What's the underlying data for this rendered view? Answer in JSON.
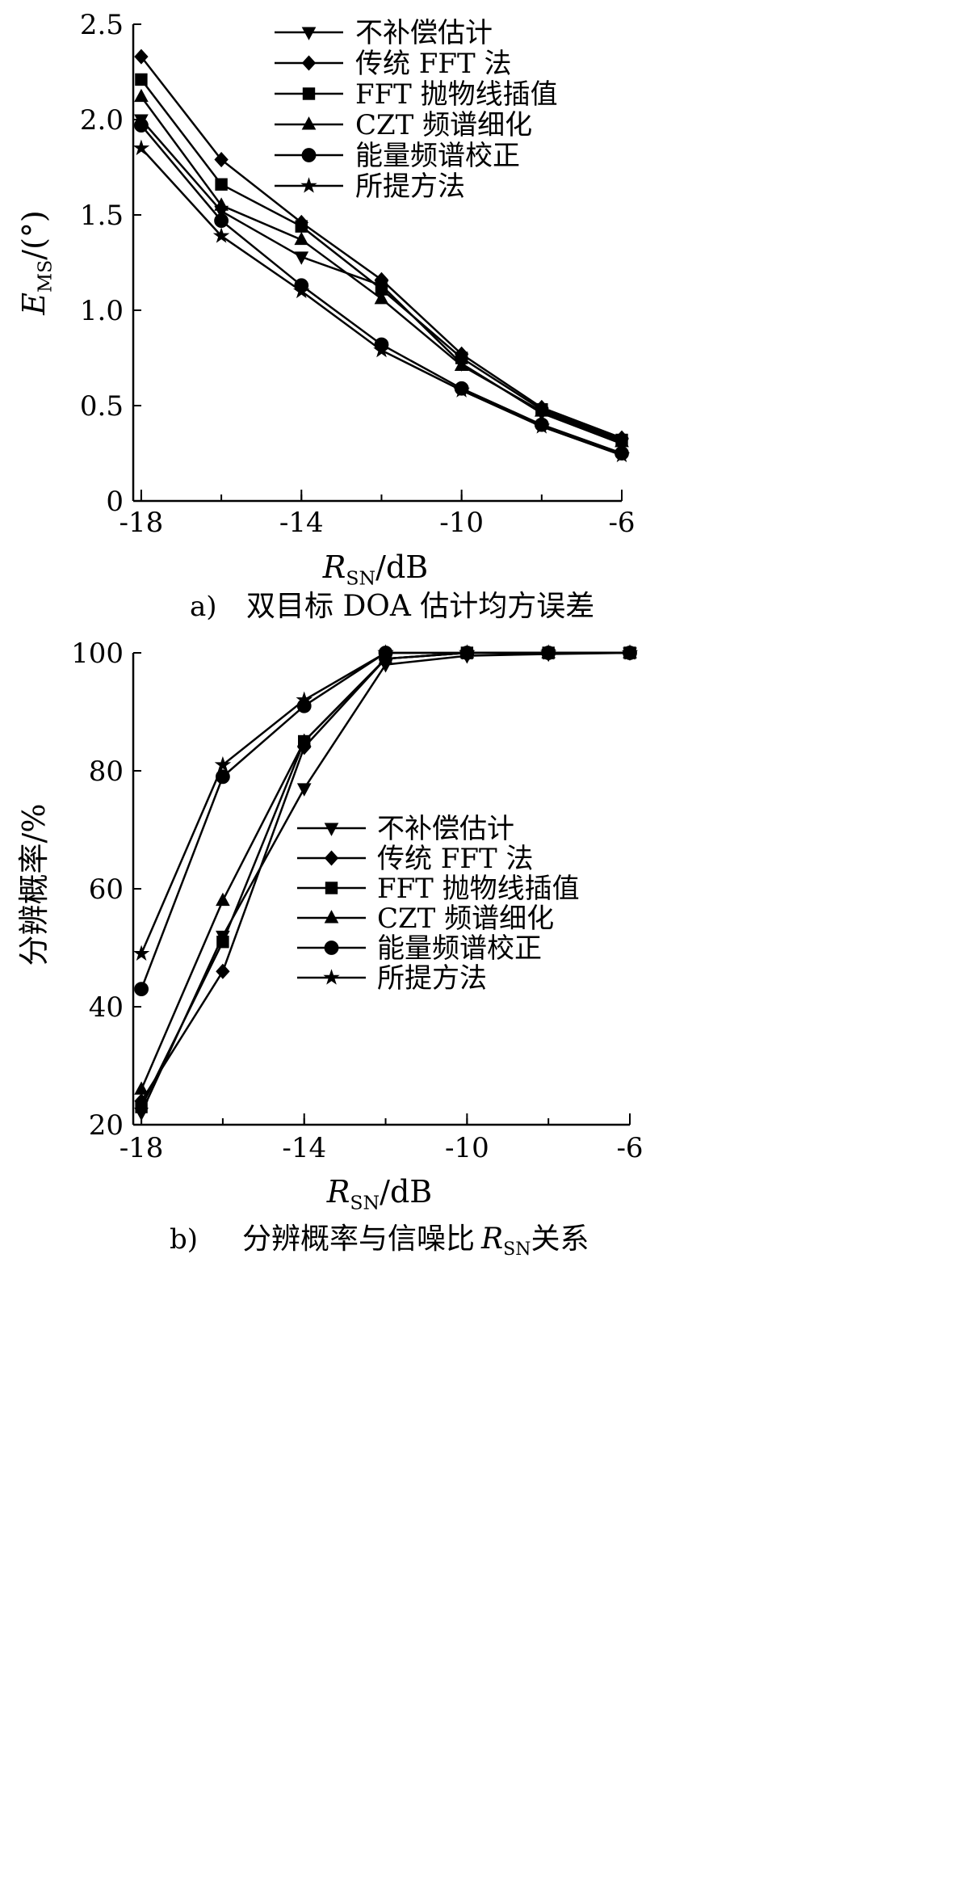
{
  "chart_data": [
    {
      "type": "line",
      "panel_label": "a)",
      "caption_text": "双目标 DOA 估计均方误差",
      "x": [
        -18,
        -16,
        -14,
        -12,
        -10,
        -8,
        -6
      ],
      "xlim": [
        -18.2,
        -6
      ],
      "xticks": [
        -18,
        -14,
        -10,
        -6
      ],
      "xtick_labels": [
        "-18",
        "-14",
        "-10",
        "-6"
      ],
      "xlabel": {
        "main": "R",
        "sub": "SN",
        "rest": "/dB"
      },
      "ylim": [
        0,
        2.5
      ],
      "yticks": [
        0,
        0.5,
        1.0,
        1.5,
        2.0,
        2.5
      ],
      "ytick_labels": [
        "0",
        "0.5",
        "1.0",
        "1.5",
        "2.0",
        "2.5"
      ],
      "ylabel": {
        "main": "E",
        "sub": "MS",
        "rest": "/(°)"
      },
      "grid": false,
      "legend_position": "top-right",
      "series": [
        {
          "name": "不补偿估计",
          "marker": "triangle-down",
          "values": [
            2.0,
            1.52,
            1.28,
            1.13,
            0.72,
            0.46,
            0.3
          ]
        },
        {
          "name": "传统 FFT 法",
          "marker": "diamond",
          "values": [
            2.33,
            1.79,
            1.46,
            1.16,
            0.77,
            0.49,
            0.33
          ]
        },
        {
          "name": "FFT 抛物线插值",
          "marker": "square",
          "values": [
            2.21,
            1.66,
            1.44,
            1.11,
            0.75,
            0.48,
            0.32
          ]
        },
        {
          "name": "CZT 频谱细化",
          "marker": "triangle-up",
          "values": [
            2.12,
            1.55,
            1.37,
            1.06,
            0.71,
            0.47,
            0.31
          ]
        },
        {
          "name": "能量频谱校正",
          "marker": "circle",
          "values": [
            1.97,
            1.47,
            1.13,
            0.82,
            0.59,
            0.4,
            0.25
          ]
        },
        {
          "name": "所提方法",
          "marker": "star",
          "values": [
            1.85,
            1.39,
            1.1,
            0.79,
            0.58,
            0.39,
            0.24
          ]
        }
      ]
    },
    {
      "type": "line",
      "panel_label": "b)",
      "caption_text": "分辨概率与信噪比",
      "caption_symbol": {
        "main": "R",
        "sub": "SN",
        "rest": "关系"
      },
      "x": [
        -18,
        -16,
        -14,
        -12,
        -10,
        -8,
        -6
      ],
      "xlim": [
        -18.2,
        -6
      ],
      "xticks": [
        -18,
        -14,
        -10,
        -6
      ],
      "xtick_labels": [
        "-18",
        "-14",
        "-10",
        "-6"
      ],
      "xlabel": {
        "main": "R",
        "sub": "SN",
        "rest": "/dB"
      },
      "ylim": [
        20,
        100
      ],
      "yticks": [
        20,
        40,
        60,
        80,
        100
      ],
      "ytick_labels": [
        "20",
        "40",
        "60",
        "80",
        "100"
      ],
      "ylabel": {
        "main": "分辨概率/%",
        "sub": "",
        "rest": ""
      },
      "grid": false,
      "legend_position": "center-right",
      "series": [
        {
          "name": "不补偿估计",
          "marker": "triangle-down",
          "values": [
            22,
            52,
            77,
            98,
            99.5,
            99.8,
            100
          ]
        },
        {
          "name": "传统 FFT 法",
          "marker": "diamond",
          "values": [
            24,
            46,
            84,
            99,
            100,
            100,
            100
          ]
        },
        {
          "name": "FFT 抛物线插值",
          "marker": "square",
          "values": [
            23,
            51,
            85,
            99,
            100,
            100,
            100
          ]
        },
        {
          "name": "CZT 频谱细化",
          "marker": "triangle-up",
          "values": [
            26,
            58,
            85,
            99,
            100,
            100,
            100
          ]
        },
        {
          "name": "能量频谱校正",
          "marker": "circle",
          "values": [
            43,
            79,
            91,
            100,
            100,
            100,
            100
          ]
        },
        {
          "name": "所提方法",
          "marker": "star",
          "values": [
            49,
            81,
            92,
            100,
            100,
            100,
            100
          ]
        }
      ]
    }
  ]
}
